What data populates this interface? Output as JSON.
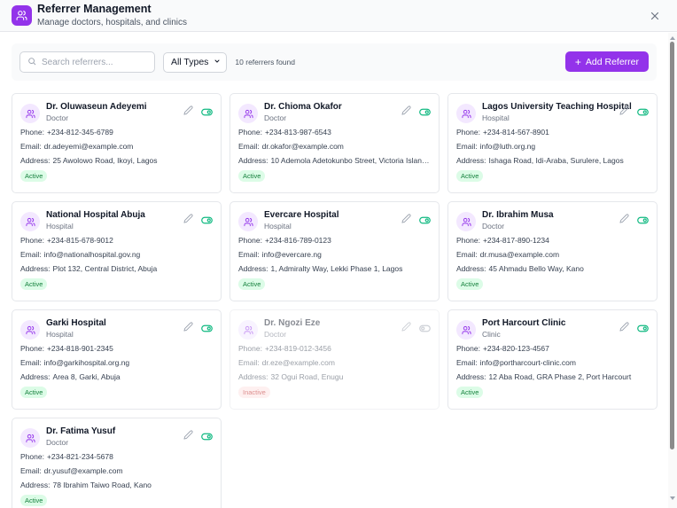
{
  "header": {
    "title": "Referrer Management",
    "subtitle": "Manage doctors, hospitals, and clinics",
    "icon": "users-icon",
    "close_icon": "close-icon"
  },
  "toolbar": {
    "search_placeholder": "Search referrers...",
    "search_value": "",
    "type_filter": "All Types",
    "count_text": "10 referrers found",
    "add_label": "Add Referrer"
  },
  "labels": {
    "phone": "Phone:",
    "email": "Email:",
    "address": "Address:"
  },
  "colors": {
    "accent": "#9333ea",
    "active_toggle": "#10b981",
    "active_badge_bg": "#dcfce7",
    "active_badge_text": "#15803d",
    "inactive_badge_bg": "#fee2e2",
    "inactive_badge_text": "#b91c1c"
  },
  "referrers": [
    {
      "name": "Dr. Oluwaseun Adeyemi",
      "type": "Doctor",
      "phone": "+234-812-345-6789",
      "email": "dr.adeyemi@example.com",
      "address": "25 Awolowo Road, Ikoyi, Lagos",
      "status": "Active"
    },
    {
      "name": "Dr. Chioma Okafor",
      "type": "Doctor",
      "phone": "+234-813-987-6543",
      "email": "dr.okafor@example.com",
      "address": "10 Ademola Adetokunbo Street, Victoria Island...",
      "status": "Active"
    },
    {
      "name": "Lagos University Teaching Hospital",
      "type": "Hospital",
      "phone": "+234-814-567-8901",
      "email": "info@luth.org.ng",
      "address": "Ishaga Road, Idi-Araba, Surulere, Lagos",
      "status": "Active"
    },
    {
      "name": "National Hospital Abuja",
      "type": "Hospital",
      "phone": "+234-815-678-9012",
      "email": "info@nationalhospital.gov.ng",
      "address": "Plot 132, Central District, Abuja",
      "status": "Active"
    },
    {
      "name": "Evercare Hospital",
      "type": "Hospital",
      "phone": "+234-816-789-0123",
      "email": "info@evercare.ng",
      "address": "1, Admiralty Way, Lekki Phase 1, Lagos",
      "status": "Active"
    },
    {
      "name": "Dr. Ibrahim Musa",
      "type": "Doctor",
      "phone": "+234-817-890-1234",
      "email": "dr.musa@example.com",
      "address": "45 Ahmadu Bello Way, Kano",
      "status": "Active"
    },
    {
      "name": "Garki Hospital",
      "type": "Hospital",
      "phone": "+234-818-901-2345",
      "email": "info@garkihospital.org.ng",
      "address": "Area 8, Garki, Abuja",
      "status": "Active"
    },
    {
      "name": "Dr. Ngozi Eze",
      "type": "Doctor",
      "phone": "+234-819-012-3456",
      "email": "dr.eze@example.com",
      "address": "32 Ogui Road, Enugu",
      "status": "Inactive"
    },
    {
      "name": "Port Harcourt Clinic",
      "type": "Clinic",
      "phone": "+234-820-123-4567",
      "email": "info@portharcourt-clinic.com",
      "address": "12 Aba Road, GRA Phase 2, Port Harcourt",
      "status": "Active"
    },
    {
      "name": "Dr. Fatima Yusuf",
      "type": "Doctor",
      "phone": "+234-821-234-5678",
      "email": "dr.yusuf@example.com",
      "address": "78 Ibrahim Taiwo Road, Kano",
      "status": "Active"
    }
  ]
}
